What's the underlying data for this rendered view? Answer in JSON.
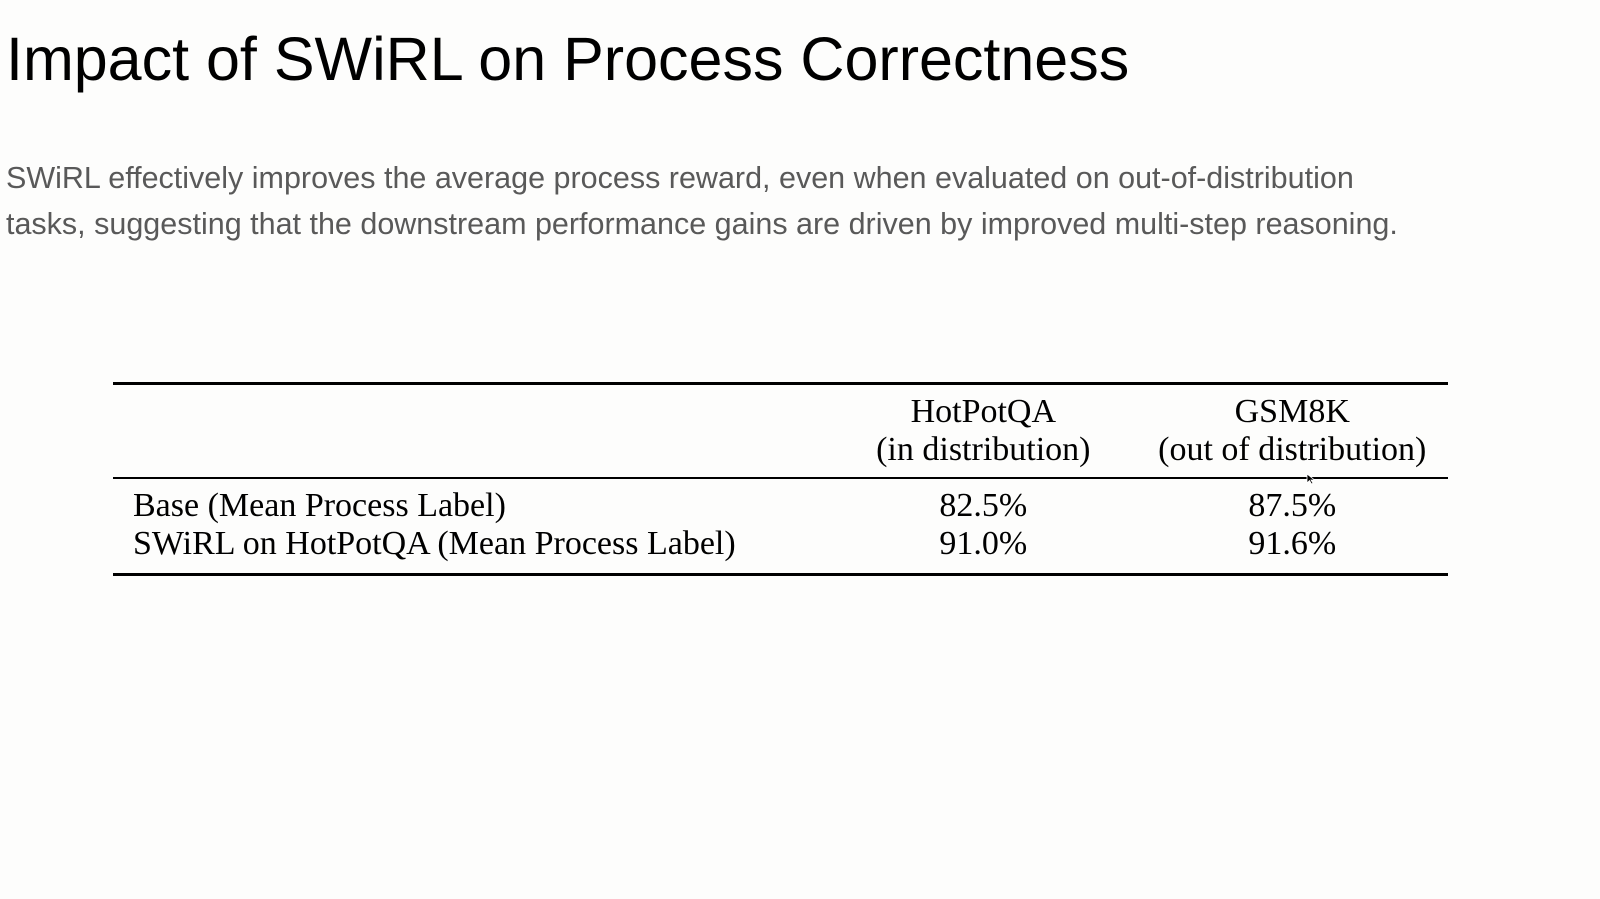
{
  "slide": {
    "title": "Impact of SWiRL on Process Correctness",
    "body_lines": [
      "SWiRL effectively improves the average process reward, even when evaluated on out-of-distribution",
      "tasks, suggesting that the downstream performance gains are driven by improved multi-step reasoning."
    ]
  },
  "table": {
    "columns": [
      {
        "line1": "",
        "line2": ""
      },
      {
        "line1": "HotPotQA",
        "line2": "(in distribution)"
      },
      {
        "line1": "GSM8K",
        "line2": "(out of distribution)"
      }
    ],
    "rows": [
      {
        "label": "Base (Mean Process Label)",
        "hotpotqa": "82.5%",
        "gsm8k": "87.5%"
      },
      {
        "label": "SWiRL on HotPotQA (Mean Process Label)",
        "hotpotqa": "91.0%",
        "gsm8k": "91.6%"
      }
    ]
  }
}
